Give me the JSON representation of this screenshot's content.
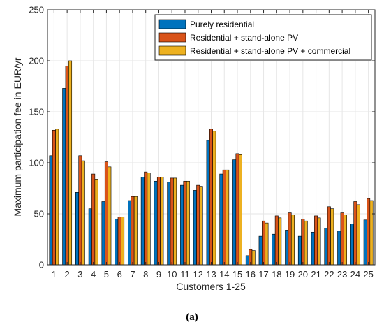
{
  "chart_data": {
    "type": "bar",
    "title": "",
    "xlabel": "Customers 1-25",
    "ylabel": "Maximum participation fee in EUR/yr",
    "ylim": [
      0,
      250
    ],
    "yticks": [
      0,
      50,
      100,
      150,
      200,
      250
    ],
    "grid": true,
    "legend_position": "top-right",
    "categories": [
      "1",
      "2",
      "3",
      "4",
      "5",
      "6",
      "7",
      "8",
      "9",
      "10",
      "11",
      "12",
      "13",
      "14",
      "15",
      "16",
      "17",
      "18",
      "19",
      "20",
      "21",
      "22",
      "23",
      "24",
      "25"
    ],
    "series": [
      {
        "name": "Purely residential",
        "color": "#0072BD",
        "values": [
          107,
          173,
          71,
          55,
          62,
          45,
          63,
          86,
          82,
          81,
          78,
          73,
          122,
          89,
          103,
          9,
          28,
          30,
          34,
          28,
          32,
          36,
          33,
          40,
          44
        ]
      },
      {
        "name": "Residential + stand-alone PV",
        "color": "#D95319",
        "values": [
          132,
          195,
          107,
          89,
          101,
          47,
          67,
          91,
          86,
          85,
          82,
          78,
          133,
          93,
          109,
          15,
          43,
          48,
          51,
          45,
          48,
          57,
          51,
          62,
          65
        ]
      },
      {
        "name": "Residential + stand-alone PV + commercial",
        "color": "#EDB120",
        "values": [
          133,
          200,
          102,
          84,
          96,
          47,
          67,
          90,
          86,
          85,
          82,
          77,
          131,
          93,
          108,
          14,
          41,
          46,
          49,
          43,
          46,
          55,
          49,
          59,
          63
        ]
      }
    ]
  },
  "caption": "(a)"
}
